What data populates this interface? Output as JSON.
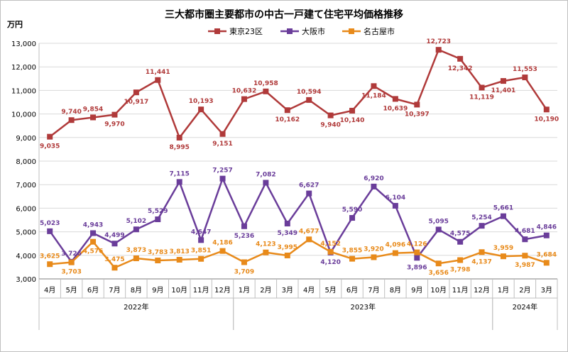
{
  "chart_data": {
    "type": "line",
    "title": "三大都市圏主要都市の中古一戸建て住宅平均価格推移",
    "ylabel": "万円",
    "ylim": [
      3000,
      13000
    ],
    "yticks": [
      3000,
      4000,
      5000,
      6000,
      7000,
      8000,
      9000,
      10000,
      11000,
      12000,
      13000
    ],
    "ytick_labels": [
      "3,000",
      "4,000",
      "5,000",
      "6,000",
      "7,000",
      "8,000",
      "9,000",
      "10,000",
      "11,000",
      "12,000",
      "13,000"
    ],
    "categories": [
      "4月",
      "5月",
      "6月",
      "7月",
      "8月",
      "9月",
      "10月",
      "11月",
      "12月",
      "1月",
      "2月",
      "3月",
      "4月",
      "5月",
      "6月",
      "7月",
      "8月",
      "9月",
      "10月",
      "11月",
      "12月",
      "1月",
      "2月",
      "3月"
    ],
    "year_groups": [
      {
        "label": "2022年",
        "start": 0,
        "end": 8
      },
      {
        "label": "2023年",
        "start": 9,
        "end": 20
      },
      {
        "label": "2024年",
        "start": 21,
        "end": 23
      }
    ],
    "grid": true,
    "legend_position": "top-center",
    "series": [
      {
        "name": "東京23区",
        "color": "#b03a3a",
        "marker": "square",
        "values": [
          9035,
          9740,
          9854,
          9970,
          10917,
          11441,
          8995,
          10193,
          9151,
          10632,
          10958,
          10162,
          10594,
          9940,
          10140,
          11184,
          10639,
          10397,
          12723,
          12342,
          11119,
          11401,
          11553,
          10190
        ],
        "labels": [
          "9,035",
          "9,740",
          "9,854",
          "9,970",
          "10,917",
          "11,441",
          "8,995",
          "10,193",
          "9,151",
          "10,632",
          "10,958",
          "10,162",
          "10,594",
          "9,940",
          "10,140",
          "11,184",
          "10,639",
          "10,397",
          "12,723",
          "12,342",
          "11,119",
          "11,401",
          "11,553",
          "10,190"
        ]
      },
      {
        "name": "大阪市",
        "color": "#6a3d9a",
        "marker": "square",
        "values": [
          5023,
          3726,
          4943,
          4499,
          5102,
          5529,
          7115,
          4647,
          7257,
          5236,
          7082,
          5349,
          6627,
          4120,
          5590,
          6920,
          6104,
          3896,
          5095,
          4575,
          5254,
          5661,
          4681,
          4846
        ],
        "labels": [
          "5,023",
          "3,726",
          "4,943",
          "4,499",
          "5,102",
          "5,529",
          "7,115",
          "4,647",
          "7,257",
          "5,236",
          "7,082",
          "5,349",
          "6,627",
          "4,120",
          "5,590",
          "6,920",
          "6,104",
          "3,896",
          "5,095",
          "4,575",
          "5,254",
          "5,661",
          "4,681",
          "4,846"
        ]
      },
      {
        "name": "名古屋市",
        "color": "#e88a1a",
        "marker": "square",
        "values": [
          3625,
          3703,
          4576,
          3475,
          3873,
          3783,
          3813,
          3851,
          4186,
          3709,
          4123,
          3995,
          4677,
          4152,
          3855,
          3920,
          4096,
          4126,
          3656,
          3798,
          4137,
          3959,
          3987,
          3684
        ],
        "labels": [
          "3,625",
          "3,703",
          "4,576",
          "3,475",
          "3,873",
          "3,783",
          "3,813",
          "3,851",
          "4,186",
          "3,709",
          "4,123",
          "3,995",
          "4,677",
          "4,152",
          "3,855",
          "3,920",
          "4,096",
          "4,126",
          "3,656",
          "3,798",
          "4,137",
          "3,959",
          "3,987",
          "3,684"
        ]
      }
    ]
  }
}
